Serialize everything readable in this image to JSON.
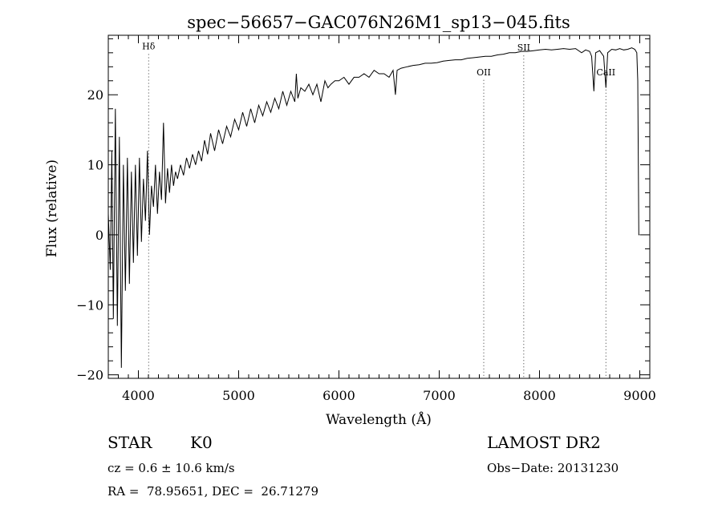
{
  "chart_data": {
    "type": "line",
    "title": "spec−56657−GAC076N26M1_sp13−045.fits",
    "xlabel": "Wavelength (Å)",
    "ylabel": "Flux (relative)",
    "xlim": [
      3700,
      9100
    ],
    "ylim": [
      -20.5,
      28.5
    ],
    "xticks": [
      4000,
      5000,
      6000,
      7000,
      8000,
      9000
    ],
    "yticks": [
      -20,
      -10,
      0,
      10,
      20
    ],
    "ytick_labels": [
      "−20",
      "−10",
      "0",
      "10",
      "20"
    ],
    "series": [
      {
        "x": [
          3700,
          3720,
          3735,
          3750,
          3770,
          3790,
          3810,
          3830,
          3850,
          3870,
          3890,
          3910,
          3930,
          3950,
          3970,
          3990,
          4010,
          4030,
          4050,
          4070,
          4090,
          4110,
          4130,
          4150,
          4170,
          4190,
          4210,
          4230,
          4250,
          4270,
          4290,
          4310,
          4330,
          4350,
          4370,
          4390,
          4420,
          4450,
          4480,
          4510,
          4540,
          4570,
          4600,
          4630,
          4660,
          4690,
          4720,
          4760,
          4800,
          4840,
          4880,
          4920,
          4960,
          5000,
          5040,
          5080,
          5120,
          5160,
          5200,
          5240,
          5280,
          5320,
          5360,
          5400,
          5440,
          5480,
          5520,
          5560,
          5575,
          5590,
          5620,
          5660,
          5700,
          5740,
          5780,
          5820,
          5860,
          5890,
          5920,
          5960,
          6000,
          6050,
          6100,
          6150,
          6200,
          6250,
          6300,
          6350,
          6400,
          6450,
          6500,
          6540,
          6563,
          6580,
          6620,
          6680,
          6740,
          6800,
          6860,
          6920,
          6980,
          7040,
          7100,
          7160,
          7220,
          7280,
          7340,
          7400,
          7460,
          7520,
          7580,
          7640,
          7700,
          7760,
          7820,
          7880,
          7940,
          8000,
          8060,
          8120,
          8180,
          8240,
          8300,
          8360,
          8420,
          8460,
          8500,
          8520,
          8542,
          8560,
          8600,
          8640,
          8662,
          8680,
          8720,
          8760,
          8800,
          8840,
          8880,
          8920,
          8950,
          8970,
          8980,
          8990,
          9000
        ],
        "y": [
          3.0,
          -5.0,
          12.0,
          -12.0,
          18.0,
          -13.0,
          14.0,
          -19.0,
          10.0,
          -8.0,
          11.0,
          -7.0,
          9.0,
          -4.0,
          10.0,
          -3.0,
          11.0,
          -1.0,
          8.0,
          2.0,
          12.0,
          0.0,
          7.0,
          4.0,
          10.0,
          3.0,
          9.0,
          5.0,
          16.0,
          4.5,
          9.5,
          6.0,
          10.0,
          7.0,
          9.0,
          8.0,
          10.0,
          8.5,
          11.0,
          9.5,
          11.5,
          10.0,
          12.0,
          10.5,
          13.5,
          11.5,
          14.5,
          12.0,
          15.0,
          13.0,
          15.5,
          14.0,
          16.5,
          15.0,
          17.5,
          15.5,
          18.0,
          16.0,
          18.5,
          17.0,
          19.0,
          17.5,
          19.5,
          18.0,
          20.5,
          18.5,
          20.5,
          19.0,
          23.0,
          19.5,
          21.0,
          20.5,
          21.5,
          20.0,
          21.5,
          19.0,
          22.0,
          21.0,
          21.5,
          22.0,
          22.0,
          22.5,
          21.5,
          22.5,
          22.5,
          23.0,
          22.5,
          23.5,
          23.0,
          23.0,
          22.5,
          23.5,
          20.0,
          23.5,
          23.8,
          24.0,
          24.2,
          24.3,
          24.5,
          24.5,
          24.6,
          24.8,
          24.9,
          25.0,
          25.0,
          25.2,
          25.3,
          25.4,
          25.5,
          25.5,
          25.7,
          25.8,
          26.0,
          26.0,
          26.2,
          26.2,
          26.3,
          26.4,
          26.5,
          26.4,
          26.5,
          26.6,
          26.5,
          26.6,
          26.0,
          26.4,
          26.2,
          25.5,
          20.5,
          26.0,
          26.3,
          25.5,
          21.0,
          26.0,
          26.5,
          26.4,
          26.6,
          26.4,
          26.5,
          26.7,
          26.5,
          26.0,
          22.0,
          0.0,
          0.0
        ]
      }
    ],
    "annotations": [
      {
        "label": "Hδ",
        "x": 4102,
        "label_y": 26.5
      },
      {
        "label": "OII",
        "x": 7444,
        "label_y": 22.8
      },
      {
        "label": "SII",
        "x": 7843,
        "label_y": 26.3
      },
      {
        "label": "CaII",
        "x": 8662,
        "label_y": 22.8
      }
    ]
  },
  "info": {
    "class_label": "STAR",
    "subclass": "K0",
    "survey": "LAMOST DR2",
    "cz": "cz = 0.6 ± 10.6 km/s",
    "obs_date": "Obs−Date: 20131230",
    "coords": "RA =  78.95651, DEC =  26.71279"
  }
}
